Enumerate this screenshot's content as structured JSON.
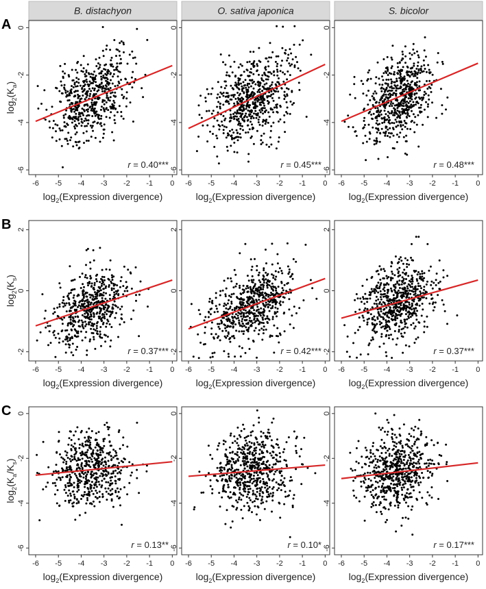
{
  "strip_labels": [
    "B. distachyon",
    "O. sativa japonica",
    "S. bicolor"
  ],
  "rows": [
    {
      "letter": "A",
      "ylabel": {
        "prefix": "log",
        "sub_base": "2",
        "open": "(K",
        "sub_var": "a",
        "close": ")"
      },
      "r_values": [
        "0.40***",
        "0.45***",
        "0.48***"
      ]
    },
    {
      "letter": "B",
      "ylabel": {
        "prefix": "log",
        "sub_base": "2",
        "open": "(K",
        "sub_var": "s",
        "close": ")"
      },
      "r_values": [
        "0.37***",
        "0.42***",
        "0.37***"
      ]
    },
    {
      "letter": "C",
      "ylabel": {
        "prefix": "log",
        "sub_base": "2",
        "open": "(K",
        "sub_var": "a",
        "mid": "/K",
        "sub_var2": "s",
        "close": ")"
      },
      "r_values": [
        "0.13**",
        "0.10*",
        "0.17***"
      ]
    }
  ],
  "xlabel": {
    "prefix": "log",
    "sub": "2",
    "rest": "(Expression divergence)"
  },
  "r_prefix": "r",
  "r_eq": " = ",
  "chart_data": {
    "type": "scatter",
    "title": "",
    "xlabel": "log2(Expression divergence)",
    "x_ticks": [
      -6,
      -5,
      -4,
      -3,
      -2,
      -1,
      0
    ],
    "xlim": [
      -6.3,
      0.2
    ],
    "columns": [
      "B. distachyon",
      "O. sativa japonica",
      "S. bicolor"
    ],
    "regression_color": "#d62728",
    "point_color": "#000000",
    "panels": [
      {
        "row": "A",
        "ylabel": "log2(Ka)",
        "ylim": [
          -6.2,
          0.3
        ],
        "y_ticks": [
          0,
          -2,
          -4,
          -6
        ],
        "subplots": [
          {
            "species": "B. distachyon",
            "r": 0.4,
            "sig": "***",
            "line": [
              [
                -6,
                -3.95
              ],
              [
                0,
                -1.6
              ]
            ],
            "x_center": -3.6,
            "x_sd": 1.15,
            "seed": 11,
            "n": 560
          },
          {
            "species": "O. sativa japonica",
            "r": 0.45,
            "sig": "***",
            "line": [
              [
                -6,
                -4.25
              ],
              [
                0,
                -1.55
              ]
            ],
            "x_center": -3.2,
            "x_sd": 1.2,
            "seed": 12,
            "n": 640
          },
          {
            "species": "S. bicolor",
            "r": 0.48,
            "sig": "***",
            "line": [
              [
                -6,
                -3.95
              ],
              [
                0,
                -1.5
              ]
            ],
            "x_center": -3.6,
            "x_sd": 1.05,
            "seed": 13,
            "n": 640
          }
        ]
      },
      {
        "row": "B",
        "ylabel": "log2(Ks)",
        "ylim": [
          -2.3,
          2.3
        ],
        "y_ticks": [
          2,
          0,
          -2
        ],
        "subplots": [
          {
            "species": "B. distachyon",
            "r": 0.37,
            "sig": "***",
            "line": [
              [
                -6,
                -1.15
              ],
              [
                0,
                0.35
              ]
            ],
            "x_center": -3.6,
            "x_sd": 1.15,
            "seed": 21,
            "n": 560
          },
          {
            "species": "O. sativa japonica",
            "r": 0.42,
            "sig": "***",
            "line": [
              [
                -6,
                -1.25
              ],
              [
                0,
                0.4
              ]
            ],
            "x_center": -3.2,
            "x_sd": 1.2,
            "seed": 22,
            "n": 640
          },
          {
            "species": "S. bicolor",
            "r": 0.37,
            "sig": "***",
            "line": [
              [
                -6,
                -0.9
              ],
              [
                0,
                0.35
              ]
            ],
            "x_center": -3.6,
            "x_sd": 1.05,
            "seed": 23,
            "n": 640
          }
        ]
      },
      {
        "row": "C",
        "ylabel": "log2(Ka/Ks)",
        "ylim": [
          -6.3,
          0.3
        ],
        "y_ticks": [
          0,
          -2,
          -4,
          -6
        ],
        "subplots": [
          {
            "species": "B. distachyon",
            "r": 0.13,
            "sig": "**",
            "line": [
              [
                -6,
                -2.75
              ],
              [
                0,
                -2.15
              ]
            ],
            "x_center": -3.6,
            "x_sd": 1.15,
            "seed": 31,
            "n": 560
          },
          {
            "species": "O. sativa japonica",
            "r": 0.1,
            "sig": "*",
            "line": [
              [
                -6,
                -2.8
              ],
              [
                0,
                -2.3
              ]
            ],
            "x_center": -3.2,
            "x_sd": 1.2,
            "seed": 32,
            "n": 640
          },
          {
            "species": "S. bicolor",
            "r": 0.17,
            "sig": "***",
            "line": [
              [
                -6,
                -2.9
              ],
              [
                0,
                -2.2
              ]
            ],
            "x_center": -3.6,
            "x_sd": 1.05,
            "seed": 33,
            "n": 640
          }
        ]
      }
    ]
  }
}
